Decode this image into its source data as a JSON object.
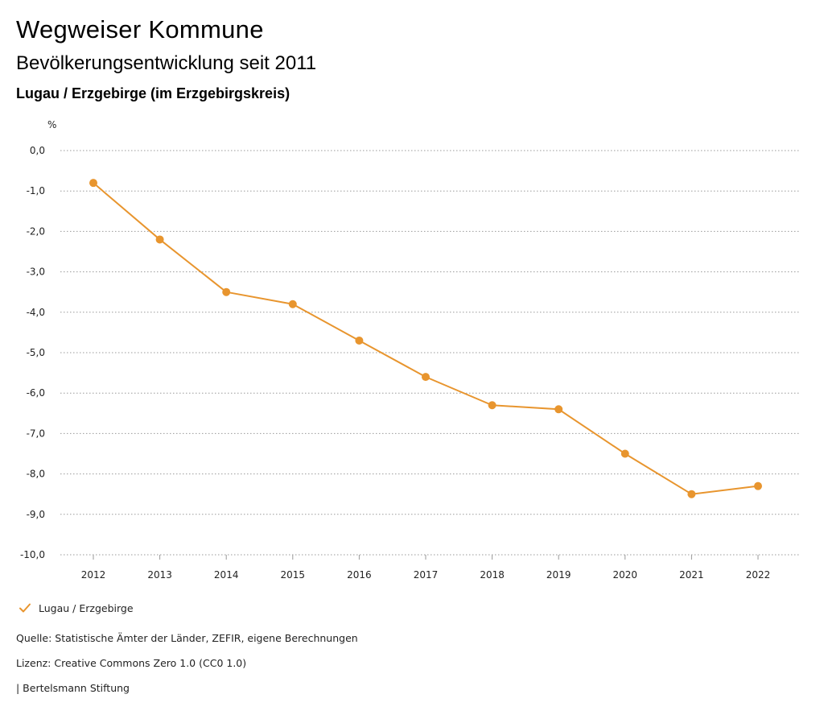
{
  "header": {
    "title": "Wegweiser Kommune",
    "subtitle": "Bevölkerungsentwicklung seit 2011",
    "region": "Lugau / Erzgebirge (im Erzgebirgskreis)"
  },
  "chart_data": {
    "type": "line",
    "title": "Bevölkerungsentwicklung seit 2011",
    "ylabel": "%",
    "xlabel": "",
    "categories": [
      "2012",
      "2013",
      "2014",
      "2015",
      "2016",
      "2017",
      "2018",
      "2019",
      "2020",
      "2021",
      "2022"
    ],
    "ylim": [
      -10,
      0
    ],
    "yticks": [
      0,
      -1,
      -2,
      -3,
      -4,
      -5,
      -6,
      -7,
      -8,
      -9,
      -10
    ],
    "ytick_labels": [
      "0,0",
      "-1,0",
      "-2,0",
      "-3,0",
      "-4,0",
      "-5,0",
      "-6,0",
      "-7,0",
      "-8,0",
      "-9,0",
      "-10,0"
    ],
    "grid": true,
    "series": [
      {
        "name": "Lugau / Erzgebirge",
        "color": "#E8952E",
        "values": [
          -0.8,
          -2.2,
          -3.5,
          -3.8,
          -4.7,
          -5.6,
          -6.3,
          -6.4,
          -7.5,
          -8.5,
          -8.3
        ]
      }
    ],
    "legend_position": "bottom-left"
  },
  "legend": {
    "label": "Lugau / Erzgebirge",
    "icon": "checkmark-icon"
  },
  "footer": {
    "source": "Quelle: Statistische Ämter der Länder, ZEFIR, eigene Berechnungen",
    "license": "Lizenz: Creative Commons Zero 1.0 (CC0 1.0)",
    "publisher": "| Bertelsmann Stiftung"
  }
}
